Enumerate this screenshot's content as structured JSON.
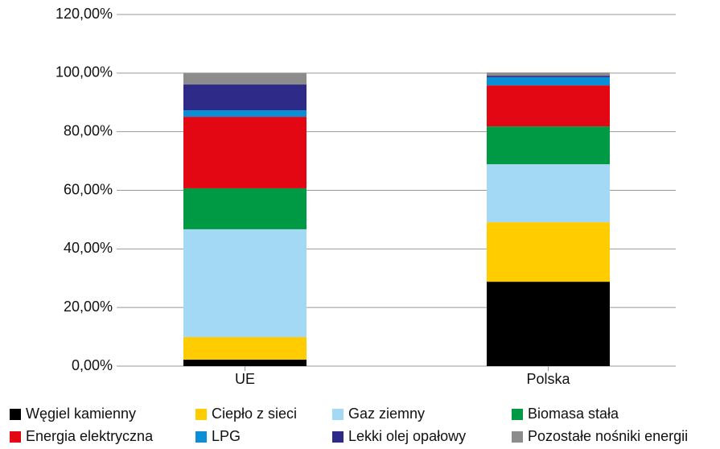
{
  "chart_data": {
    "type": "stacked_bar",
    "categories": [
      "UE",
      "Polska"
    ],
    "series": [
      {
        "name": "Węgiel kamienny",
        "color": "#000000",
        "values": [
          2.2,
          28.8
        ]
      },
      {
        "name": "Ciepło z sieci",
        "color": "#ffcc00",
        "values": [
          7.7,
          20.3
        ]
      },
      {
        "name": "Gaz ziemny",
        "color": "#a3d9f5",
        "values": [
          36.8,
          19.8
        ]
      },
      {
        "name": "Biomasa stała",
        "color": "#009a44",
        "values": [
          14.0,
          12.9
        ]
      },
      {
        "name": "Energia elektryczna",
        "color": "#e30613",
        "values": [
          24.4,
          14.0
        ]
      },
      {
        "name": "LPG",
        "color": "#0a8fd6",
        "values": [
          2.2,
          2.8
        ]
      },
      {
        "name": "Lekki olej opałowy",
        "color": "#2e2a87",
        "values": [
          8.8,
          0.5
        ]
      },
      {
        "name": "Pozostałe nośniki energii",
        "color": "#8c8c8c",
        "values": [
          4.0,
          1.1
        ]
      }
    ],
    "ylim": [
      0,
      120
    ],
    "yticks": [
      {
        "value": 0,
        "label": "0,00%"
      },
      {
        "value": 20,
        "label": "20,00%"
      },
      {
        "value": 40,
        "label": "40,00%"
      },
      {
        "value": 60,
        "label": "60,00%"
      },
      {
        "value": 80,
        "label": "80,00%"
      },
      {
        "value": 100,
        "label": "100,00%"
      },
      {
        "value": 120,
        "label": "120,00%"
      }
    ],
    "grid": true
  }
}
